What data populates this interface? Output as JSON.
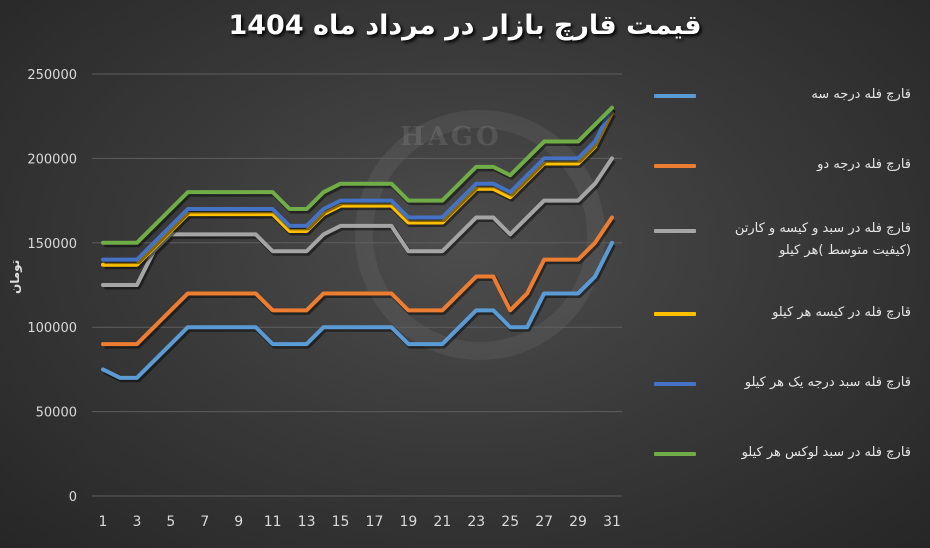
{
  "chart_data": {
    "type": "line",
    "title": "قیمت قارچ بازار در مرداد ماه 1404",
    "xlabel": "",
    "ylabel": "تومان",
    "watermark": "HAGO",
    "ylim": [
      0,
      250000
    ],
    "yticks": [
      "0",
      "50000",
      "100000",
      "150000",
      "200000",
      "250000"
    ],
    "x": [
      1,
      2,
      3,
      4,
      5,
      6,
      7,
      8,
      9,
      10,
      11,
      12,
      13,
      14,
      15,
      16,
      17,
      18,
      19,
      20,
      21,
      22,
      23,
      24,
      25,
      26,
      27,
      28,
      29,
      30,
      31
    ],
    "xticks": [
      "1",
      "3",
      "5",
      "7",
      "9",
      "11",
      "13",
      "15",
      "17",
      "19",
      "21",
      "23",
      "25",
      "27",
      "29",
      "31"
    ],
    "grid": true,
    "legend_position": "right",
    "series": [
      {
        "name": "قارچ فله درجه سه",
        "color": "#5b9bd5",
        "values": [
          75000,
          70000,
          70000,
          80000,
          90000,
          100000,
          100000,
          100000,
          100000,
          100000,
          90000,
          90000,
          90000,
          100000,
          100000,
          100000,
          100000,
          100000,
          90000,
          90000,
          90000,
          100000,
          110000,
          110000,
          100000,
          100000,
          120000,
          120000,
          120000,
          130000,
          150000
        ]
      },
      {
        "name": "قارچ فله درجه دو",
        "color": "#ed7d31",
        "values": [
          90000,
          90000,
          90000,
          100000,
          110000,
          120000,
          120000,
          120000,
          120000,
          120000,
          110000,
          110000,
          110000,
          120000,
          120000,
          120000,
          120000,
          120000,
          110000,
          110000,
          110000,
          120000,
          130000,
          130000,
          110000,
          120000,
          140000,
          140000,
          140000,
          150000,
          165000
        ]
      },
      {
        "name": "قارچ فله در سبد و کیسه و کارتن (کیفیت متوسط )هر کیلو",
        "color": "#a5a5a5",
        "values": [
          125000,
          125000,
          125000,
          145000,
          155000,
          155000,
          155000,
          155000,
          155000,
          155000,
          145000,
          145000,
          145000,
          155000,
          160000,
          160000,
          160000,
          160000,
          145000,
          145000,
          145000,
          155000,
          165000,
          165000,
          155000,
          165000,
          175000,
          175000,
          175000,
          185000,
          200000
        ]
      },
      {
        "name": "قارچ فله در کیسه هر کیلو",
        "color": "#ffc000",
        "values": [
          137000,
          137000,
          137000,
          147000,
          157000,
          167000,
          167000,
          167000,
          167000,
          167000,
          167000,
          157000,
          157000,
          167000,
          172000,
          172000,
          172000,
          172000,
          162000,
          162000,
          162000,
          172000,
          182000,
          182000,
          177000,
          187000,
          197000,
          197000,
          197000,
          207000,
          227000
        ]
      },
      {
        "name": "قارچ فله سبد درجه یک هر کیلو",
        "color": "#4472c4",
        "values": [
          140000,
          140000,
          140000,
          150000,
          160000,
          170000,
          170000,
          170000,
          170000,
          170000,
          170000,
          160000,
          160000,
          170000,
          175000,
          175000,
          175000,
          175000,
          165000,
          165000,
          165000,
          175000,
          185000,
          185000,
          180000,
          190000,
          200000,
          200000,
          200000,
          210000,
          230000
        ]
      },
      {
        "name": "قارچ فله در سبد لوکس هر کیلو",
        "color": "#70ad47",
        "values": [
          150000,
          150000,
          150000,
          160000,
          170000,
          180000,
          180000,
          180000,
          180000,
          180000,
          180000,
          170000,
          170000,
          180000,
          185000,
          185000,
          185000,
          185000,
          175000,
          175000,
          175000,
          185000,
          195000,
          195000,
          190000,
          200000,
          210000,
          210000,
          210000,
          220000,
          230000
        ]
      }
    ]
  }
}
